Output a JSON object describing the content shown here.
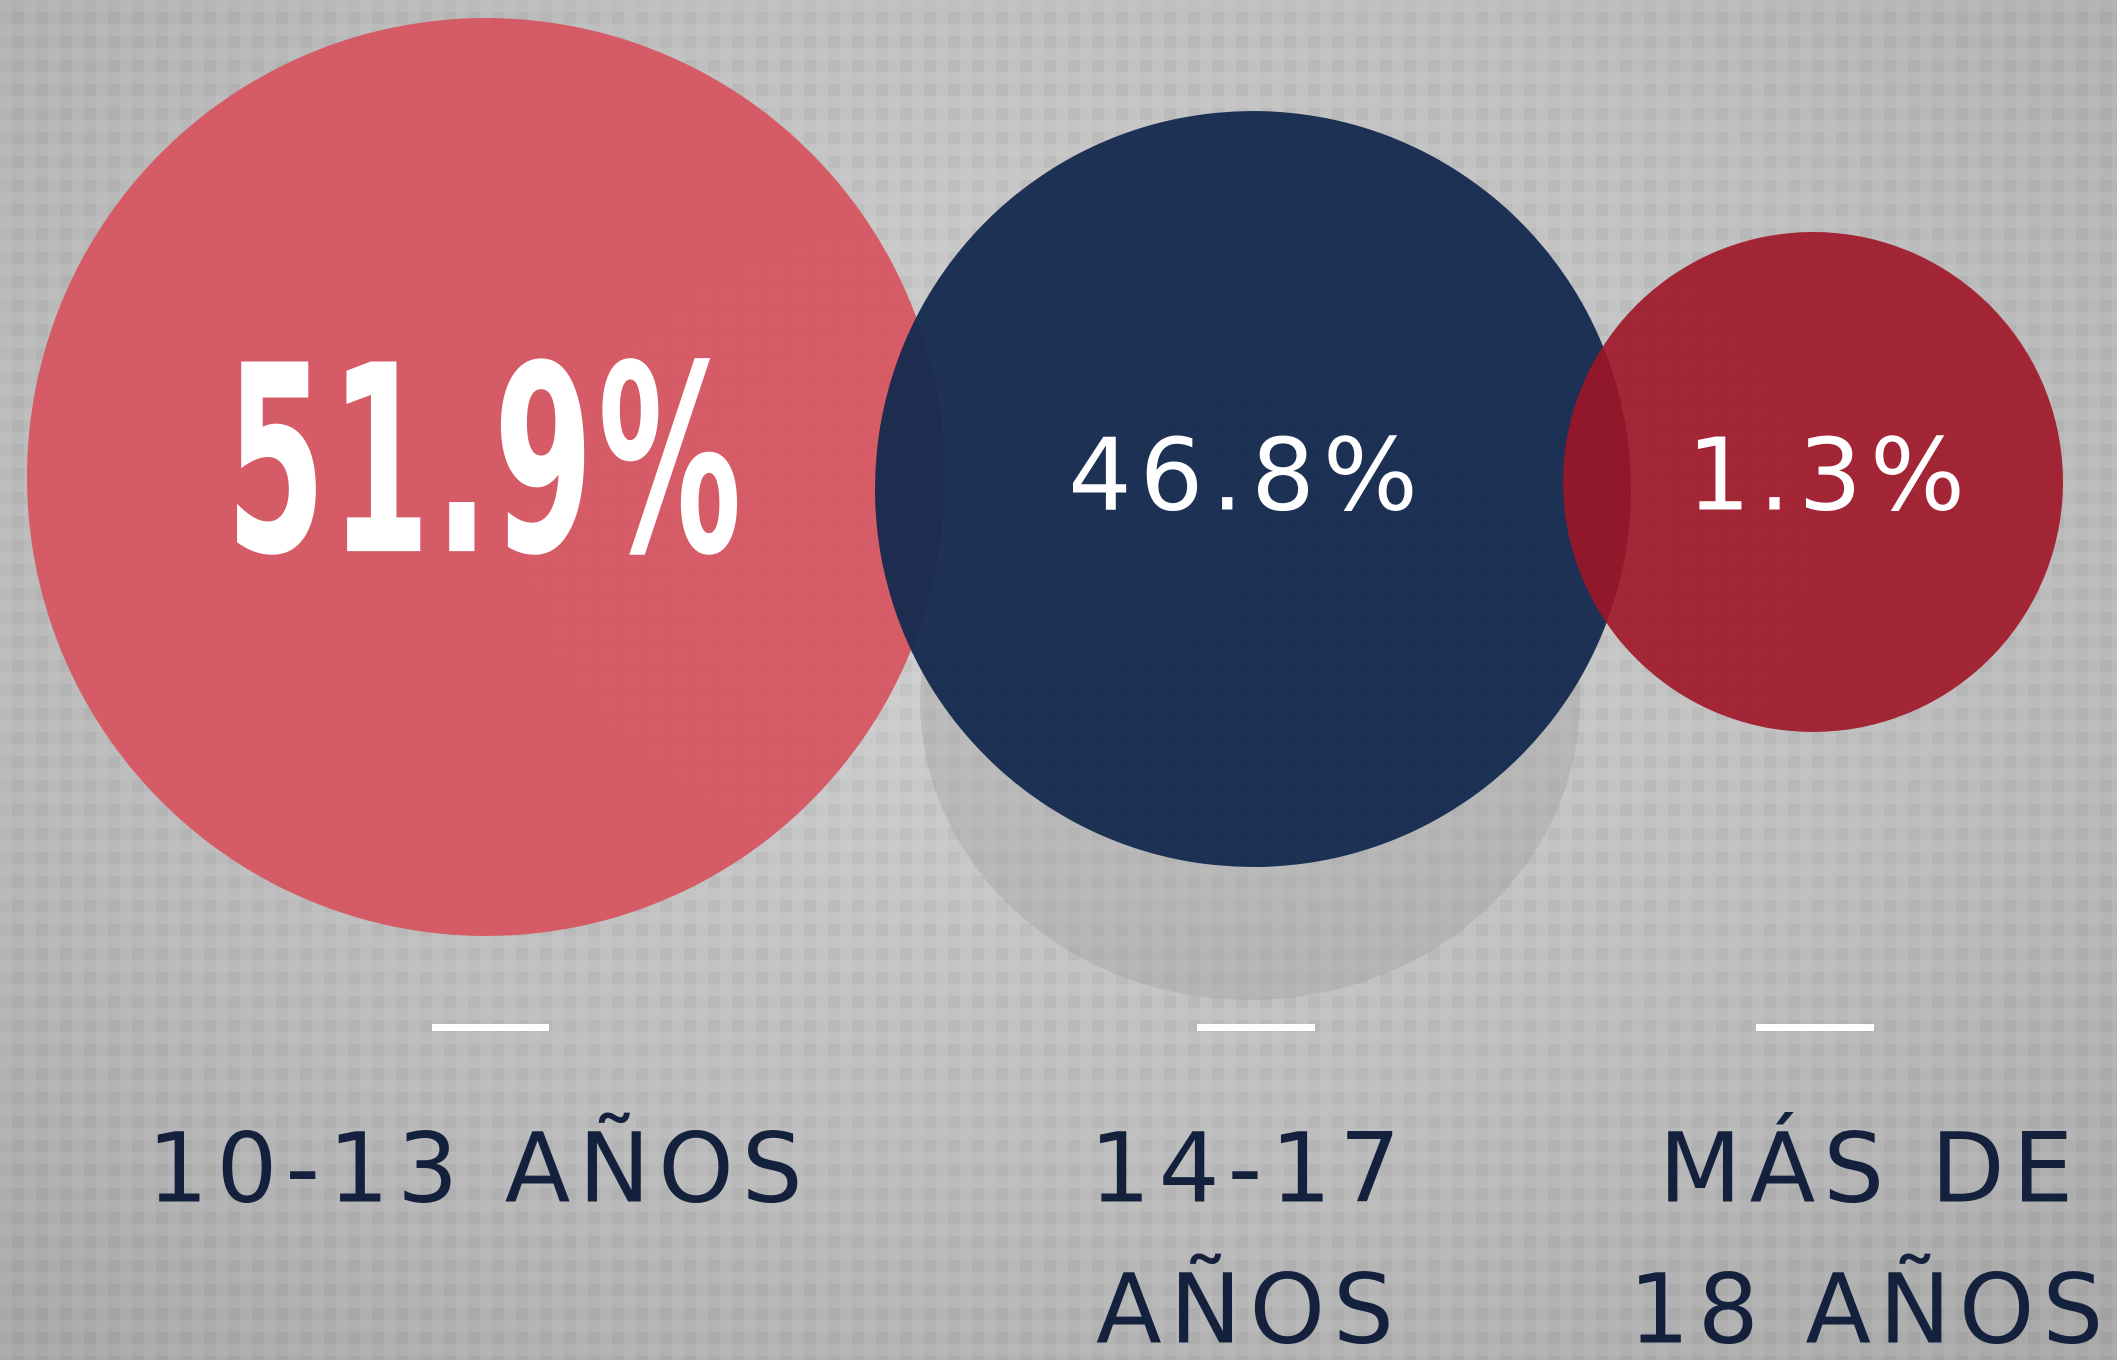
{
  "items": [
    {
      "value": "51.9%",
      "label": [
        "10-13 AÑOS"
      ]
    },
    {
      "value": "46.8%",
      "label": [
        "14-17",
        "AÑOS"
      ]
    },
    {
      "value": "1.3%",
      "label": [
        "MÁS DE",
        "18 AÑOS"
      ]
    }
  ]
}
